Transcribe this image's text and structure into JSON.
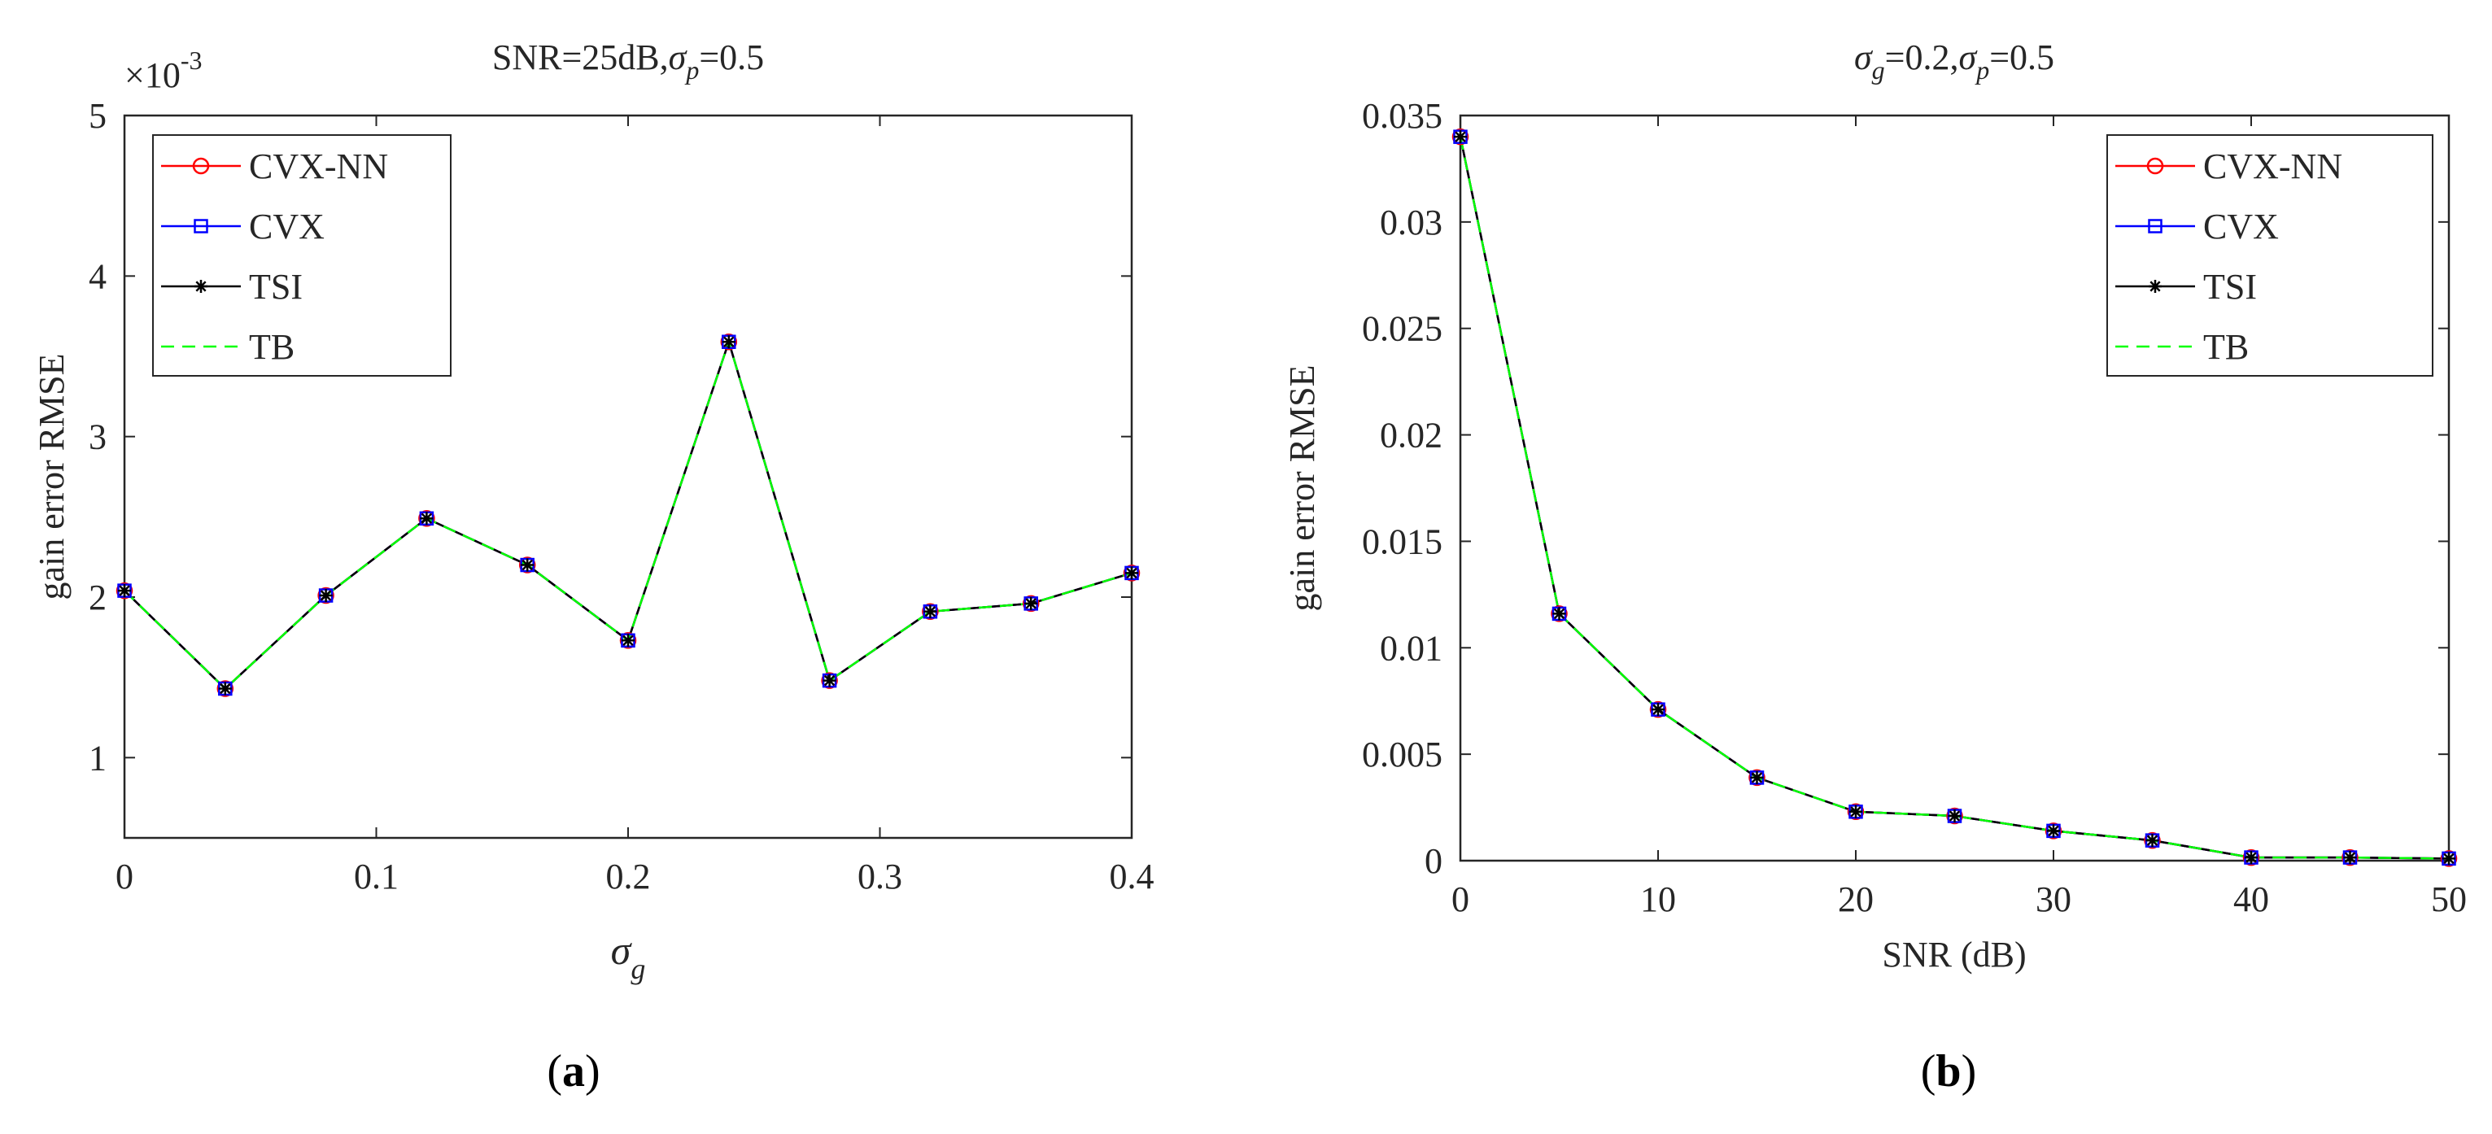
{
  "chart_data": [
    {
      "type": "line",
      "panel_label": "a",
      "title": {
        "prefix": "SNR=25dB,",
        "sigma": "σ",
        "sub": "p",
        "suffix": "=0.5"
      },
      "xlabel": {
        "sigma": "σ",
        "sub": "g"
      },
      "ylabel": "gain error RMSE",
      "y_exponent": {
        "base": "×10",
        "exp": "-3"
      },
      "xlim": [
        0,
        0.4
      ],
      "ylim": [
        0.5,
        5
      ],
      "xticks": [
        0,
        0.1,
        0.2,
        0.3,
        0.4
      ],
      "xtick_labels": [
        "0",
        "0.1",
        "0.2",
        "0.3",
        "0.4"
      ],
      "yticks": [
        1,
        2,
        3,
        4,
        5
      ],
      "ytick_labels": [
        "1",
        "2",
        "3",
        "4",
        "5"
      ],
      "legend_position": "top-left",
      "x": [
        0,
        0.04,
        0.08,
        0.12,
        0.16,
        0.2,
        0.24,
        0.28,
        0.32,
        0.36,
        0.4
      ],
      "series": [
        {
          "name": "CVX-NN",
          "color": "#ff0000",
          "marker": "circle",
          "dash": "solid",
          "values": [
            2.04,
            1.43,
            2.01,
            2.49,
            2.2,
            1.73,
            3.59,
            1.48,
            1.91,
            1.96,
            2.15
          ]
        },
        {
          "name": "CVX",
          "color": "#0000ff",
          "marker": "square",
          "dash": "solid",
          "values": [
            2.04,
            1.43,
            2.01,
            2.49,
            2.2,
            1.73,
            3.59,
            1.48,
            1.91,
            1.96,
            2.15
          ]
        },
        {
          "name": "TSI",
          "color": "#000000",
          "marker": "star",
          "dash": "solid",
          "values": [
            2.04,
            1.43,
            2.01,
            2.49,
            2.2,
            1.73,
            3.59,
            1.48,
            1.91,
            1.96,
            2.15
          ]
        },
        {
          "name": "TB",
          "color": "#00ff00",
          "marker": "none",
          "dash": "dashed",
          "values": [
            2.04,
            1.43,
            2.01,
            2.49,
            2.2,
            1.73,
            3.59,
            1.48,
            1.91,
            1.96,
            2.15
          ]
        }
      ]
    },
    {
      "type": "line",
      "panel_label": "b",
      "title": {
        "sigma": "σ",
        "sub": "g",
        "middle": "=0.2,",
        "sigma2": "σ",
        "sub2": "p",
        "suffix": "=0.5"
      },
      "xlabel": "SNR (dB)",
      "ylabel": "gain error RMSE",
      "xlim": [
        0,
        50
      ],
      "ylim": [
        0,
        0.035
      ],
      "xticks": [
        0,
        10,
        20,
        30,
        40,
        50
      ],
      "xtick_labels": [
        "0",
        "10",
        "20",
        "30",
        "40",
        "50"
      ],
      "yticks": [
        0,
        0.005,
        0.01,
        0.015,
        0.02,
        0.025,
        0.03,
        0.035
      ],
      "ytick_labels": [
        "0",
        "0.005",
        "0.01",
        "0.015",
        "0.02",
        "0.025",
        "0.03",
        "0.035"
      ],
      "legend_position": "top-right",
      "x": [
        0,
        5,
        10,
        15,
        20,
        25,
        30,
        35,
        40,
        45,
        50
      ],
      "series": [
        {
          "name": "CVX-NN",
          "color": "#ff0000",
          "marker": "circle",
          "dash": "solid",
          "values": [
            0.034,
            0.0116,
            0.0071,
            0.0039,
            0.0023,
            0.0021,
            0.0014,
            0.00095,
            0.00015,
            0.00015,
            0.0001
          ]
        },
        {
          "name": "CVX",
          "color": "#0000ff",
          "marker": "square",
          "dash": "solid",
          "values": [
            0.034,
            0.0116,
            0.0071,
            0.0039,
            0.0023,
            0.0021,
            0.0014,
            0.00095,
            0.00015,
            0.00015,
            0.0001
          ]
        },
        {
          "name": "TSI",
          "color": "#000000",
          "marker": "star",
          "dash": "solid",
          "values": [
            0.034,
            0.0116,
            0.0071,
            0.0039,
            0.0023,
            0.0021,
            0.0014,
            0.00095,
            0.00015,
            0.00015,
            0.0001
          ]
        },
        {
          "name": "TB",
          "color": "#00ff00",
          "marker": "none",
          "dash": "dashed",
          "values": [
            0.034,
            0.0116,
            0.0071,
            0.0039,
            0.0023,
            0.0021,
            0.0014,
            0.00095,
            0.00015,
            0.00015,
            0.0001
          ]
        }
      ]
    }
  ]
}
